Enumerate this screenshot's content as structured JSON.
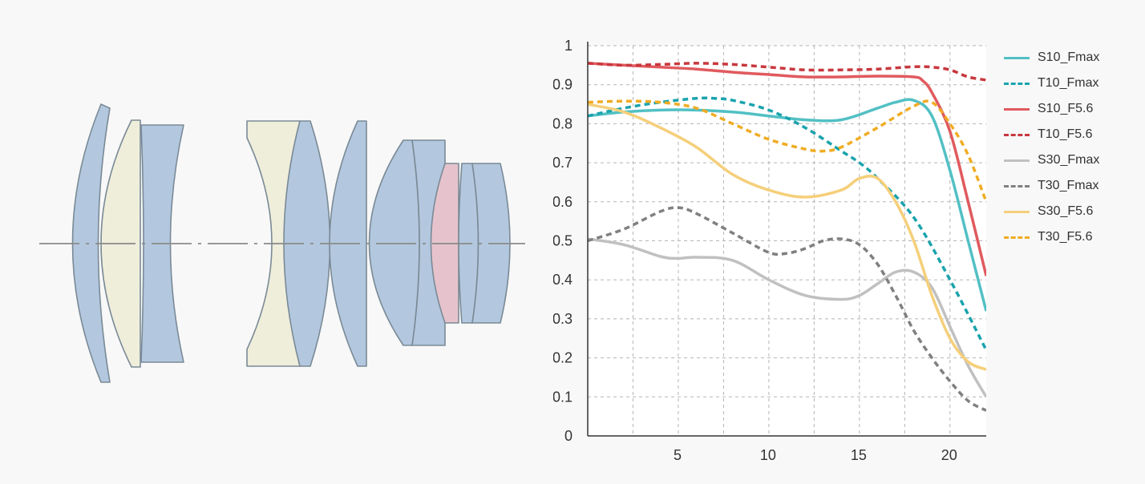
{
  "chart_data": {
    "type": "line",
    "title": "",
    "xlabel": "",
    "ylabel": "",
    "xlim": [
      0,
      22
    ],
    "ylim": [
      0,
      1
    ],
    "x_ticks": [
      5,
      10,
      15,
      20
    ],
    "y_ticks": [
      0,
      0.1,
      0.2,
      0.3,
      0.4,
      0.5,
      0.6,
      0.7,
      0.8,
      0.9,
      1
    ],
    "y_tick_labels": [
      "0",
      "0.1",
      "0.2",
      "0.3",
      "0.4",
      "0.5",
      "0.6",
      "0.7",
      "0.8",
      "0.9",
      "1"
    ],
    "grid": true,
    "legend_position": "right",
    "series": [
      {
        "name": "S10_Fmax",
        "color": "#52c0c4",
        "dash": "solid",
        "x": [
          0,
          2,
          4,
          6,
          8,
          10,
          12,
          14,
          16,
          17,
          18,
          19,
          20,
          21,
          22
        ],
        "y": [
          0.82,
          0.83,
          0.835,
          0.835,
          0.83,
          0.82,
          0.81,
          0.81,
          0.84,
          0.855,
          0.86,
          0.82,
          0.68,
          0.5,
          0.32
        ]
      },
      {
        "name": "T10_Fmax",
        "color": "#1aa3ad",
        "dash": "dashed",
        "x": [
          0,
          2,
          4,
          6,
          7,
          8,
          10,
          12,
          14,
          15,
          16,
          18,
          20,
          22
        ],
        "y": [
          0.82,
          0.84,
          0.855,
          0.865,
          0.865,
          0.86,
          0.835,
          0.79,
          0.73,
          0.7,
          0.66,
          0.56,
          0.4,
          0.22
        ]
      },
      {
        "name": "S10_F5.6",
        "color": "#e05a5e",
        "dash": "solid",
        "x": [
          0,
          2,
          4,
          6,
          8,
          10,
          12,
          14,
          16,
          18,
          18.5,
          19,
          20,
          21,
          22
        ],
        "y": [
          0.955,
          0.95,
          0.945,
          0.94,
          0.932,
          0.926,
          0.92,
          0.92,
          0.922,
          0.92,
          0.91,
          0.88,
          0.78,
          0.6,
          0.41
        ]
      },
      {
        "name": "T10_F5.6",
        "color": "#c8383e",
        "dash": "dashed",
        "x": [
          0,
          2,
          4,
          6,
          8,
          10,
          12,
          14,
          16,
          18,
          19,
          20,
          21,
          22
        ],
        "y": [
          0.955,
          0.95,
          0.952,
          0.955,
          0.952,
          0.945,
          0.938,
          0.938,
          0.94,
          0.946,
          0.945,
          0.938,
          0.92,
          0.912
        ]
      },
      {
        "name": "S30_Fmax",
        "color": "#c0c0c0",
        "dash": "solid",
        "x": [
          0,
          2,
          4,
          5,
          6,
          8,
          10,
          12,
          14,
          15,
          16,
          17,
          18,
          19,
          20,
          21,
          22
        ],
        "y": [
          0.505,
          0.49,
          0.46,
          0.455,
          0.458,
          0.45,
          0.4,
          0.36,
          0.35,
          0.36,
          0.39,
          0.42,
          0.42,
          0.38,
          0.28,
          0.18,
          0.1
        ]
      },
      {
        "name": "T30_Fmax",
        "color": "#808080",
        "dash": "dashed",
        "x": [
          0,
          2,
          4,
          5,
          6,
          8,
          10,
          11,
          12,
          13,
          14,
          15,
          16,
          17,
          18,
          19,
          20,
          21,
          22
        ],
        "y": [
          0.5,
          0.53,
          0.575,
          0.585,
          0.57,
          0.52,
          0.47,
          0.468,
          0.48,
          0.5,
          0.505,
          0.49,
          0.44,
          0.36,
          0.27,
          0.2,
          0.14,
          0.09,
          0.065
        ]
      },
      {
        "name": "S30_F5.6",
        "color": "#f5cf7a",
        "dash": "solid",
        "x": [
          0,
          2,
          4,
          6,
          8,
          10,
          12,
          14,
          15,
          16,
          17,
          18,
          19,
          20,
          21,
          22
        ],
        "y": [
          0.85,
          0.83,
          0.79,
          0.74,
          0.67,
          0.63,
          0.612,
          0.63,
          0.66,
          0.66,
          0.6,
          0.5,
          0.36,
          0.25,
          0.19,
          0.17
        ]
      },
      {
        "name": "T30_F5.6",
        "color": "#f0ac24",
        "dash": "dashed",
        "x": [
          0,
          2,
          4,
          6,
          8,
          10,
          12,
          13,
          14,
          16,
          18,
          19,
          20,
          21,
          22
        ],
        "y": [
          0.855,
          0.858,
          0.855,
          0.84,
          0.8,
          0.76,
          0.735,
          0.73,
          0.74,
          0.79,
          0.845,
          0.855,
          0.8,
          0.72,
          0.6
        ]
      }
    ]
  }
}
